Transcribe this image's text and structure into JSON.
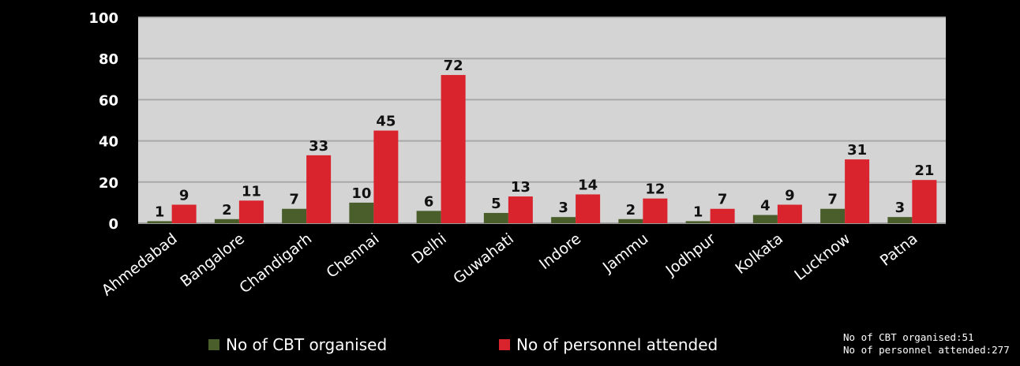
{
  "colors": {
    "organised": "#4a5e2c",
    "attended": "#d9232d",
    "plot_bg": "#d4d4d4",
    "grid": "#a8a8a8"
  },
  "legend": {
    "organised_label": "No of CBT organised",
    "attended_label": "No of personnel attended"
  },
  "totals": {
    "organised": "No of CBT organised:51",
    "attended": "No of personnel attended:277"
  },
  "chart_data": {
    "type": "bar",
    "title": "",
    "xlabel": "",
    "ylabel": "",
    "ylim": [
      0,
      100
    ],
    "yticks": [
      0,
      20,
      40,
      60,
      80,
      100
    ],
    "grid": true,
    "legend_position": "bottom",
    "categories": [
      "Ahmedabad",
      "Bangalore",
      "Chandigarh",
      "Chennai",
      "Delhi",
      "Guwahati",
      "Indore",
      "Jammu",
      "Jodhpur",
      "Kolkata",
      "Lucknow",
      "Patna"
    ],
    "series": [
      {
        "name": "No of CBT organised",
        "values": [
          1,
          2,
          7,
          10,
          6,
          5,
          3,
          2,
          1,
          4,
          7,
          3
        ]
      },
      {
        "name": "No of personnel attended",
        "values": [
          9,
          11,
          33,
          45,
          72,
          13,
          14,
          12,
          7,
          9,
          31,
          21
        ]
      }
    ]
  }
}
